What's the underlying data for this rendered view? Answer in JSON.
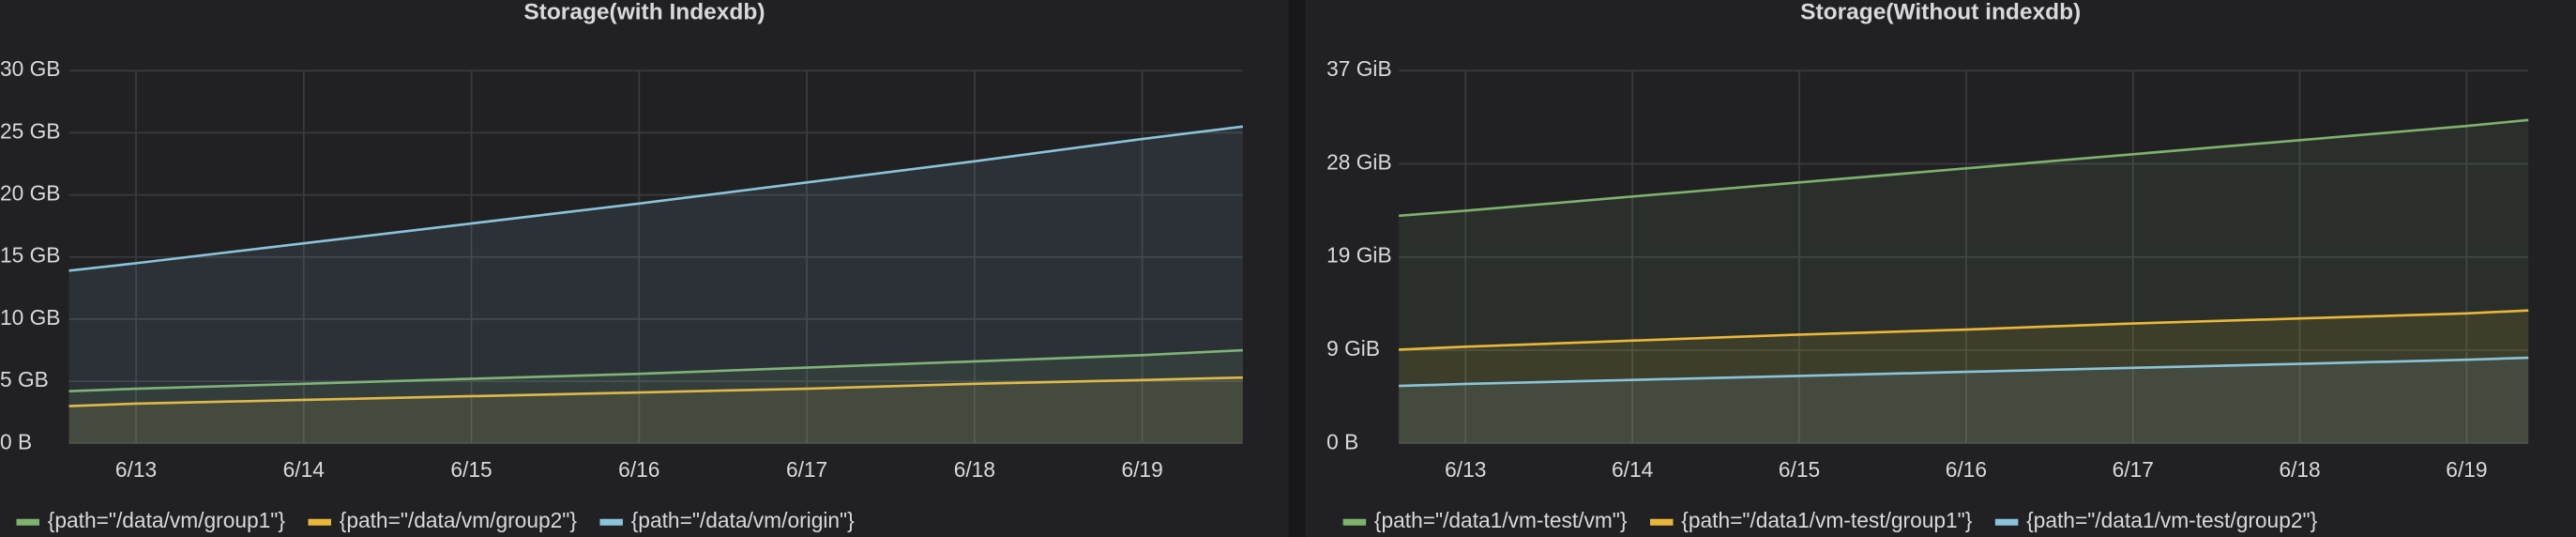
{
  "chart_data": [
    {
      "type": "line",
      "title": "Storage(with Indexdb)",
      "x": [
        12.6,
        13,
        14,
        15,
        16,
        17,
        18,
        19,
        19.6
      ],
      "xlim": [
        12.6,
        19.6
      ],
      "xticks": [
        {
          "value": 13,
          "label": "6/13"
        },
        {
          "value": 14,
          "label": "6/14"
        },
        {
          "value": 15,
          "label": "6/15"
        },
        {
          "value": 16,
          "label": "6/16"
        },
        {
          "value": 17,
          "label": "6/17"
        },
        {
          "value": 18,
          "label": "6/18"
        },
        {
          "value": 19,
          "label": "6/19"
        }
      ],
      "ylim": [
        0,
        30
      ],
      "yticks": [
        {
          "value": 0,
          "label": "0 B"
        },
        {
          "value": 5,
          "label": "5 GB"
        },
        {
          "value": 10,
          "label": "10 GB"
        },
        {
          "value": 15,
          "label": "15 GB"
        },
        {
          "value": 20,
          "label": "20 GB"
        },
        {
          "value": 25,
          "label": "25 GB"
        },
        {
          "value": 30,
          "label": "30 GB"
        }
      ],
      "grid": true,
      "series": [
        {
          "name": "{path=\"/data/vm/group1\"}",
          "color": "#7eb26d",
          "values": [
            4.2,
            4.4,
            4.8,
            5.2,
            5.6,
            6.1,
            6.6,
            7.1,
            7.5
          ]
        },
        {
          "name": "{path=\"/data/vm/group2\"}",
          "color": "#eab839",
          "values": [
            3.0,
            3.2,
            3.5,
            3.8,
            4.1,
            4.4,
            4.8,
            5.1,
            5.3
          ]
        },
        {
          "name": "{path=\"/data/vm/origin\"}",
          "color": "#8ac4da",
          "values": [
            13.9,
            14.5,
            16.1,
            17.7,
            19.3,
            21.0,
            22.7,
            24.5,
            25.5
          ]
        }
      ]
    },
    {
      "type": "line",
      "title": "Storage(Without indexdb)",
      "x": [
        12.6,
        13,
        14,
        15,
        16,
        17,
        18,
        19,
        19.37
      ],
      "xlim": [
        12.6,
        19.37
      ],
      "xticks": [
        {
          "value": 13,
          "label": "6/13"
        },
        {
          "value": 14,
          "label": "6/14"
        },
        {
          "value": 15,
          "label": "6/15"
        },
        {
          "value": 16,
          "label": "6/16"
        },
        {
          "value": 17,
          "label": "6/17"
        },
        {
          "value": 18,
          "label": "6/18"
        },
        {
          "value": 19,
          "label": "6/19"
        }
      ],
      "ylim": [
        0,
        37
      ],
      "yticks": [
        {
          "value": 0,
          "label": "0 B"
        },
        {
          "value": 9.25,
          "label": "9 GiB"
        },
        {
          "value": 18.5,
          "label": "19 GiB"
        },
        {
          "value": 27.75,
          "label": "28 GiB"
        },
        {
          "value": 37,
          "label": "37 GiB"
        }
      ],
      "grid": true,
      "series": [
        {
          "name": "{path=\"/data1/vm-test/vm\"}",
          "color": "#7eb26d",
          "values": [
            22.6,
            23.1,
            24.5,
            25.9,
            27.3,
            28.7,
            30.1,
            31.5,
            32.1
          ]
        },
        {
          "name": "{path=\"/data1/vm-test/group1\"}",
          "color": "#eab839",
          "values": [
            9.3,
            9.6,
            10.2,
            10.8,
            11.3,
            11.9,
            12.4,
            12.9,
            13.2
          ]
        },
        {
          "name": "{path=\"/data1/vm-test/group2\"}",
          "color": "#8ac4da",
          "values": [
            5.7,
            5.9,
            6.3,
            6.7,
            7.1,
            7.5,
            7.9,
            8.3,
            8.5
          ]
        }
      ]
    }
  ]
}
